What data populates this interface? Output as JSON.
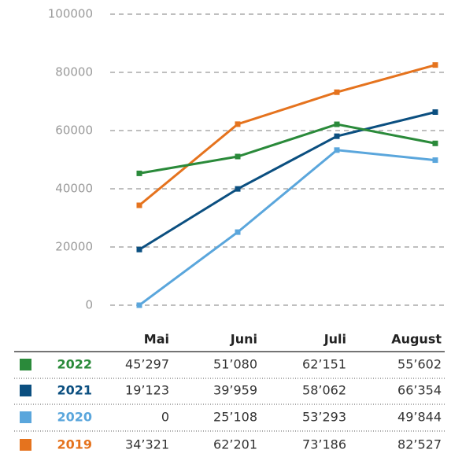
{
  "chart_data": {
    "type": "line",
    "categories": [
      "Mai",
      "Juni",
      "Juli",
      "August"
    ],
    "series": [
      {
        "name": "2022",
        "color": "#2a8a3a",
        "values": [
          45297,
          51080,
          62151,
          55602
        ],
        "value_labels": [
          "45’297",
          "51’080",
          "62’151",
          "55’602"
        ]
      },
      {
        "name": "2021",
        "color": "#0b4f80",
        "values": [
          19123,
          39959,
          58062,
          66354
        ],
        "value_labels": [
          "19’123",
          "39’959",
          "58’062",
          "66’354"
        ]
      },
      {
        "name": "2020",
        "color": "#5aa6dc",
        "values": [
          0,
          25108,
          53293,
          49844
        ],
        "value_labels": [
          "0",
          "25’108",
          "53’293",
          "49’844"
        ]
      },
      {
        "name": "2019",
        "color": "#e5731e",
        "values": [
          34321,
          62201,
          73186,
          82527
        ],
        "value_labels": [
          "34’321",
          "62’201",
          "73’186",
          "82’527"
        ]
      }
    ],
    "ylim": [
      0,
      100000
    ],
    "yticks": [
      0,
      20000,
      40000,
      60000,
      80000,
      100000
    ],
    "grid": true
  }
}
